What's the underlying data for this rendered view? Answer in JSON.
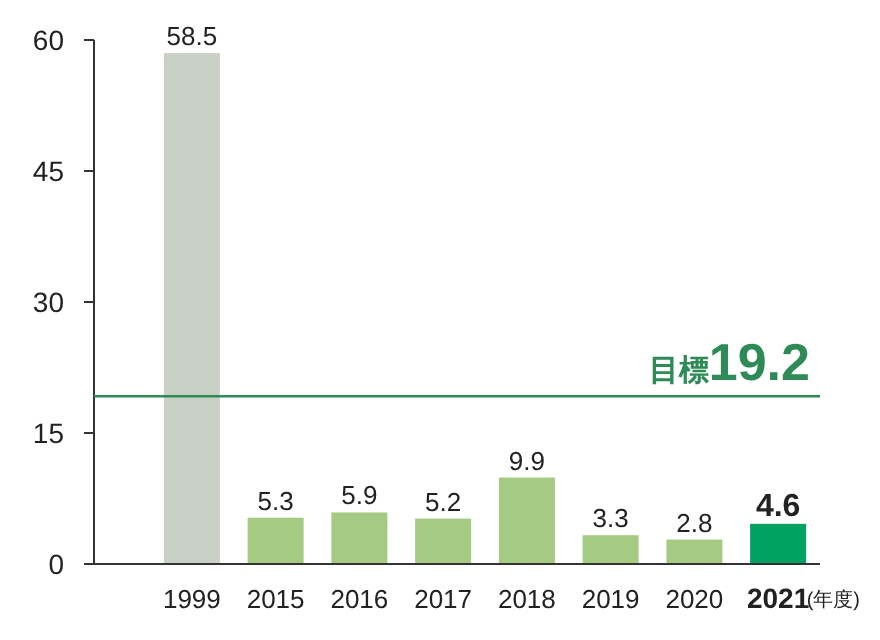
{
  "chart_data": {
    "type": "bar",
    "categories": [
      "1999",
      "2015",
      "2016",
      "2017",
      "2018",
      "2019",
      "2020",
      "**2021**"
    ],
    "values": [
      58.5,
      5.3,
      5.9,
      5.2,
      9.9,
      3.3,
      2.8,
      4.6
    ],
    "colors": [
      "#c9d0c5",
      "#a5cb82",
      "#a5cb82",
      "#a5cb82",
      "#a5cb82",
      "#a5cb82",
      "#a5cb82",
      "#00a262"
    ],
    "value_labels": [
      "58.5",
      "5.3",
      "5.9",
      "5.2",
      "9.9",
      "3.3",
      "2.8",
      "**4.6**"
    ],
    "ylim": [
      0,
      60
    ],
    "yticks": [
      0,
      15,
      30,
      45,
      60
    ],
    "xlabel": "(年度)",
    "grid": false,
    "ref_lines": [
      {
        "axis": "y",
        "value": 19.2,
        "label": "目標**19.2**",
        "color": "#2e8b57"
      }
    ]
  }
}
